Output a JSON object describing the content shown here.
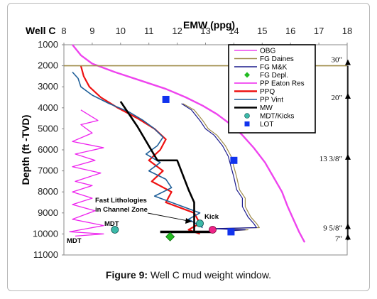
{
  "caption": {
    "label": "Figure 9:",
    "text": " Well C mud weight window."
  },
  "chart_data": {
    "type": "line",
    "title": "Well C",
    "xlabel": "EMW (ppg)",
    "ylabel": "Depth (ft -TVD)",
    "xlim": [
      8,
      18
    ],
    "ylim": [
      1000,
      11000
    ],
    "x_ticks": [
      8,
      9,
      10,
      11,
      12,
      13,
      14,
      15,
      16,
      17,
      18
    ],
    "y_ticks": [
      1000,
      2000,
      3000,
      4000,
      5000,
      6000,
      7000,
      8000,
      9000,
      10000,
      11000
    ],
    "x_axis_position": "top",
    "y_inverted": true,
    "grid": false,
    "legend_position": "top-right",
    "legend": [
      "OBG",
      "FG Daines",
      "FG M&K",
      "FG Depl.",
      "PP Eaton Res",
      "PPQ",
      "PP Vint",
      "MW",
      "MDT/Kicks",
      "LOT"
    ],
    "colors": {
      "OBG": "#ee44ee",
      "FG Daines": "#a08c4a",
      "FG M&K": "#1a1a8c",
      "FG Depl.": "#22bb22",
      "PP Eaton Res": "#ee22ee",
      "PPQ": "#ee1111",
      "PP Vint": "#1f5f99",
      "MW": "#000000",
      "MDT/Kicks": "#3cb9a8",
      "LOT": "#1133ee",
      "Kick": "#ee2288"
    },
    "series": [
      {
        "name": "OBG",
        "points": [
          [
            8.3,
            1000
          ],
          [
            8.6,
            1500
          ],
          [
            9.0,
            1900
          ],
          [
            9.8,
            2300
          ],
          [
            10.7,
            2700
          ],
          [
            11.6,
            3100
          ],
          [
            12.3,
            3500
          ],
          [
            12.9,
            3900
          ],
          [
            13.4,
            4300
          ],
          [
            13.9,
            4800
          ],
          [
            14.3,
            5300
          ],
          [
            14.7,
            5900
          ],
          [
            15.1,
            6600
          ],
          [
            15.4,
            7300
          ],
          [
            15.7,
            8000
          ],
          [
            15.9,
            8700
          ],
          [
            16.1,
            9300
          ],
          [
            16.3,
            9900
          ],
          [
            16.5,
            10400
          ]
        ]
      },
      {
        "name": "FG Daines",
        "points": [
          [
            12.2,
            3800
          ],
          [
            12.6,
            4100
          ],
          [
            12.9,
            4600
          ],
          [
            13.1,
            5000
          ],
          [
            13.4,
            5300
          ],
          [
            13.7,
            5800
          ],
          [
            13.9,
            6300
          ],
          [
            14.0,
            6800
          ],
          [
            14.1,
            7300
          ],
          [
            14.2,
            7900
          ],
          [
            14.4,
            8300
          ],
          [
            14.4,
            8700
          ],
          [
            14.6,
            9200
          ],
          [
            14.8,
            9500
          ],
          [
            14.9,
            9700
          ],
          [
            13.3,
            9750
          ],
          [
            14.5,
            9800
          ],
          [
            13.9,
            9850
          ],
          [
            14.0,
            9950
          ]
        ]
      },
      {
        "name": "FG M&K",
        "points": [
          [
            12.15,
            3800
          ],
          [
            12.5,
            4100
          ],
          [
            12.8,
            4600
          ],
          [
            13.0,
            5000
          ],
          [
            13.3,
            5300
          ],
          [
            13.6,
            5800
          ],
          [
            13.8,
            6300
          ],
          [
            13.9,
            6800
          ],
          [
            14.0,
            7300
          ],
          [
            14.1,
            7900
          ],
          [
            14.3,
            8300
          ],
          [
            14.3,
            8700
          ],
          [
            14.5,
            9200
          ],
          [
            14.7,
            9500
          ],
          [
            14.8,
            9700
          ],
          [
            13.2,
            9750
          ],
          [
            14.4,
            9800
          ],
          [
            13.8,
            9850
          ],
          [
            13.9,
            9950
          ]
        ]
      },
      {
        "name": "FG Depl.",
        "points": [
          [
            11.75,
            10130
          ]
        ]
      },
      {
        "name": "PP Eaton Res",
        "points": [
          [
            8.6,
            4100
          ],
          [
            9.2,
            4600
          ],
          [
            8.6,
            4800
          ],
          [
            9.0,
            5200
          ],
          [
            8.3,
            5600
          ],
          [
            9.4,
            5900
          ],
          [
            8.4,
            6200
          ],
          [
            9.1,
            6500
          ],
          [
            8.3,
            6800
          ],
          [
            9.3,
            7100
          ],
          [
            8.4,
            7500
          ],
          [
            9.0,
            7700
          ],
          [
            8.3,
            8000
          ],
          [
            9.0,
            8300
          ],
          [
            8.3,
            8600
          ],
          [
            9.1,
            8900
          ],
          [
            8.3,
            9300
          ],
          [
            9.4,
            9600
          ],
          [
            8.2,
            9900
          ],
          [
            9.4,
            10000
          ],
          [
            8.4,
            10100
          ]
        ]
      },
      {
        "name": "PPQ",
        "points": [
          [
            8.6,
            2000
          ],
          [
            8.7,
            2500
          ],
          [
            8.9,
            3000
          ],
          [
            9.3,
            3500
          ],
          [
            9.9,
            4000
          ],
          [
            10.6,
            4500
          ],
          [
            11.2,
            5000
          ],
          [
            11.6,
            5500
          ],
          [
            11.4,
            6000
          ],
          [
            11.0,
            6500
          ],
          [
            11.5,
            7000
          ],
          [
            11.1,
            7500
          ],
          [
            11.8,
            8000
          ],
          [
            11.6,
            8500
          ],
          [
            12.6,
            9000
          ],
          [
            12.8,
            9500
          ],
          [
            12.4,
            9800
          ],
          [
            12.8,
            10000
          ]
        ]
      },
      {
        "name": "PP Vint",
        "points": [
          [
            8.3,
            2300
          ],
          [
            8.5,
            2600
          ],
          [
            8.6,
            3000
          ],
          [
            9.0,
            3400
          ],
          [
            9.6,
            3800
          ],
          [
            10.3,
            4200
          ],
          [
            10.8,
            4600
          ],
          [
            11.2,
            5000
          ],
          [
            11.5,
            5400
          ],
          [
            11.3,
            5800
          ],
          [
            10.9,
            6200
          ],
          [
            11.4,
            6600
          ],
          [
            11.0,
            7000
          ],
          [
            11.6,
            7400
          ],
          [
            11.8,
            7800
          ],
          [
            11.2,
            8200
          ],
          [
            12.0,
            8600
          ],
          [
            12.8,
            9000
          ],
          [
            12.4,
            9300
          ],
          [
            12.9,
            9700
          ]
        ]
      },
      {
        "name": "MW",
        "points": [
          [
            10.0,
            3700
          ],
          [
            10.6,
            4900
          ],
          [
            11.3,
            6500
          ],
          [
            12.0,
            6500
          ],
          [
            12.4,
            7900
          ],
          [
            12.6,
            8500
          ],
          [
            12.6,
            9900
          ]
        ]
      }
    ],
    "MDT_Kicks": [
      [
        9.8,
        9800
      ],
      [
        12.8,
        9500
      ]
    ],
    "Kick": [
      [
        13.25,
        9800
      ]
    ],
    "LOT": [
      [
        11.6,
        3600
      ],
      [
        14.0,
        6500
      ],
      [
        13.9,
        9900
      ]
    ],
    "mw_bar": {
      "x1": 11.4,
      "x2": 13.3,
      "depth": 9900
    },
    "casing": [
      {
        "label": "30\"",
        "depth": 1900
      },
      {
        "label": "20\"",
        "depth": 3500
      },
      {
        "label": "13 3/8\"",
        "depth": 6400
      },
      {
        "label": "9 5/8\"",
        "depth": 9700
      },
      {
        "label": "7\"",
        "depth": 10200
      }
    ],
    "annotations": {
      "fast_line1": "Fast Lithologies",
      "fast_line2": "in Channel Zone",
      "kick": "Kick",
      "mdt": "MDT",
      "mdt2": "MDT"
    }
  }
}
